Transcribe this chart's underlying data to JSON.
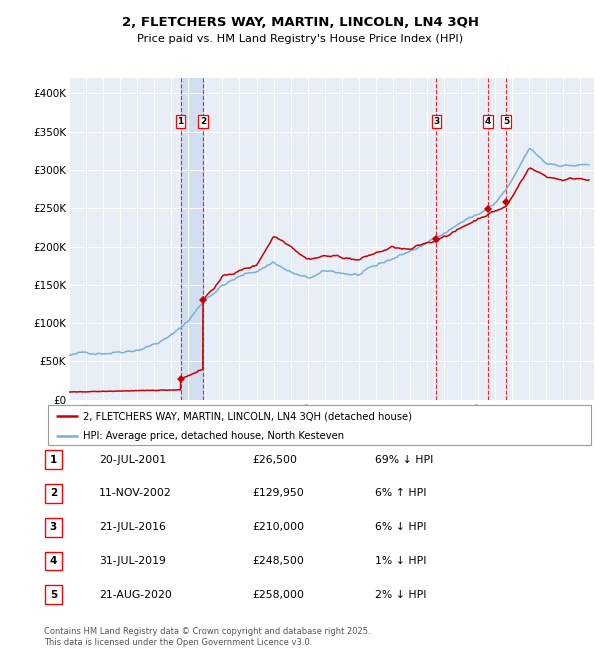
{
  "title": "2, FLETCHERS WAY, MARTIN, LINCOLN, LN4 3QH",
  "subtitle": "Price paid vs. HM Land Registry's House Price Index (HPI)",
  "hpi_label": "HPI: Average price, detached house, North Kesteven",
  "property_label": "2, FLETCHERS WAY, MARTIN, LINCOLN, LN4 3QH (detached house)",
  "footer": "Contains HM Land Registry data © Crown copyright and database right 2025.\nThis data is licensed under the Open Government Licence v3.0.",
  "red_color": "#cc0000",
  "blue_color": "#7bafd4",
  "background_color": "#e8eef6",
  "purchases": [
    {
      "num": 1,
      "date": "20-JUL-2001",
      "price": 26500,
      "year": 2001.55,
      "hpi_pct": "69%",
      "hpi_dir": "↓"
    },
    {
      "num": 2,
      "date": "11-NOV-2002",
      "price": 129950,
      "year": 2002.86,
      "hpi_pct": "6%",
      "hpi_dir": "↑"
    },
    {
      "num": 3,
      "date": "21-JUL-2016",
      "price": 210000,
      "year": 2016.55,
      "hpi_pct": "6%",
      "hpi_dir": "↓"
    },
    {
      "num": 4,
      "date": "31-JUL-2019",
      "price": 248500,
      "year": 2019.58,
      "hpi_pct": "1%",
      "hpi_dir": "↓"
    },
    {
      "num": 5,
      "date": "21-AUG-2020",
      "price": 258000,
      "year": 2020.64,
      "hpi_pct": "2%",
      "hpi_dir": "↓"
    }
  ],
  "ylim": [
    0,
    420000
  ],
  "xlim_start": 1995.0,
  "xlim_end": 2025.8,
  "yticks": [
    0,
    50000,
    100000,
    150000,
    200000,
    250000,
    300000,
    350000,
    400000
  ],
  "ylabels": [
    "£0",
    "£50K",
    "£100K",
    "£150K",
    "£200K",
    "£250K",
    "£300K",
    "£350K",
    "£400K"
  ]
}
